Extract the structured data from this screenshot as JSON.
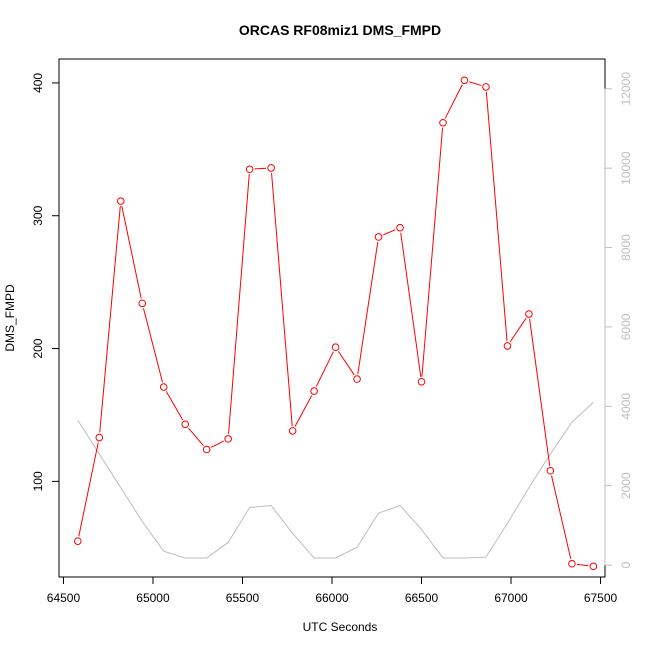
{
  "chart_data": {
    "type": "line",
    "title": "ORCAS RF08miz1 DMS_FMPD",
    "xlabel": "UTC Seconds",
    "ylabel": "DMS_FMPD",
    "y2label": "",
    "xlim": [
      64475,
      67525
    ],
    "ylim": [
      28,
      418
    ],
    "y2lim": [
      -300,
      12750
    ],
    "x_ticks": [
      64500,
      65000,
      65500,
      66000,
      66500,
      67000,
      67500
    ],
    "y_ticks": [
      100,
      200,
      300,
      400
    ],
    "y2_ticks": [
      0,
      2000,
      4000,
      6000,
      8000,
      10000,
      12000
    ],
    "grid": false,
    "series": [
      {
        "name": "",
        "axis": "left",
        "color": "#ff0000",
        "marker": "circle",
        "x": [
          64580,
          64700,
          64820,
          64940,
          65060,
          65180,
          65300,
          65420,
          65540,
          65660,
          65780,
          65900,
          66020,
          66140,
          66260,
          66380,
          66500,
          66620,
          66740,
          66860,
          66980,
          67100,
          67220,
          67340,
          67460
        ],
        "values": [
          55,
          133,
          311,
          234,
          171,
          143,
          124,
          132,
          335,
          336,
          138,
          168,
          201,
          177,
          284,
          291,
          175,
          370,
          402,
          397,
          202,
          226,
          108,
          38,
          36
        ]
      },
      {
        "name": "",
        "axis": "right",
        "color": "#bebebe",
        "marker": "none",
        "x": [
          64580,
          64700,
          64820,
          64940,
          65060,
          65180,
          65300,
          65420,
          65540,
          65660,
          65780,
          65900,
          66020,
          66140,
          66260,
          66380,
          66500,
          66620,
          66740,
          66860,
          66980,
          67100,
          67220,
          67340,
          67460
        ],
        "values": [
          3650,
          2800,
          1950,
          1100,
          350,
          180,
          180,
          570,
          1450,
          1500,
          800,
          180,
          180,
          450,
          1310,
          1500,
          900,
          180,
          180,
          200,
          1050,
          1950,
          2800,
          3600,
          4100
        ]
      }
    ]
  }
}
